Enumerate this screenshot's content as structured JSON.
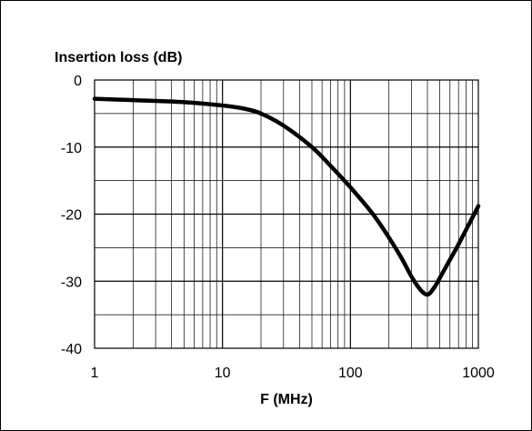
{
  "chart_data": {
    "type": "line",
    "title": "",
    "ylabel": "Insertion loss (dB)",
    "xlabel": "F (MHz)",
    "x_scale": "log",
    "xlim": [
      1,
      1000
    ],
    "ylim": [
      -40,
      0
    ],
    "grid": true,
    "x_major_ticks": [
      "1",
      "10",
      "100",
      "1000"
    ],
    "y_ticks": [
      "0",
      "-10",
      "-20",
      "-30",
      "-40"
    ],
    "y_minor_step": 5,
    "series": [
      {
        "name": "",
        "color": "#000000",
        "x": [
          1,
          2,
          5,
          10,
          15,
          20,
          30,
          50,
          70,
          100,
          150,
          200,
          250,
          300,
          350,
          400,
          450,
          500,
          600,
          700,
          1000
        ],
        "y": [
          -2.8,
          -3.0,
          -3.3,
          -3.8,
          -4.3,
          -5.0,
          -6.8,
          -10.0,
          -12.8,
          -16.0,
          -20.0,
          -23.5,
          -26.5,
          -29.3,
          -31.2,
          -32.0,
          -31.0,
          -29.5,
          -26.8,
          -24.5,
          -18.8
        ]
      }
    ]
  }
}
